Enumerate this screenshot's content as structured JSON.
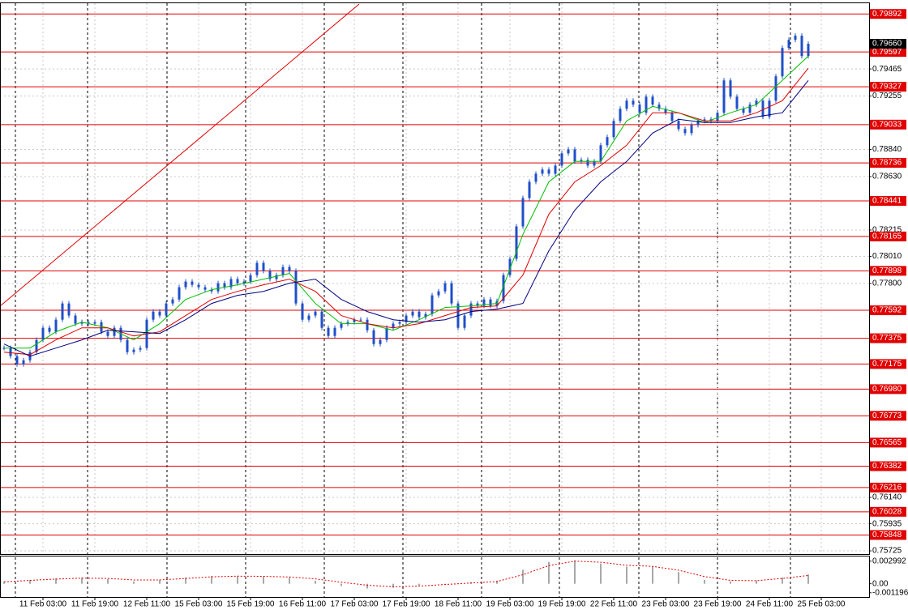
{
  "chart_data": {
    "type": "candlestick",
    "candle_color": "#1f4fc8",
    "closes": [
      0.77299,
      0.77236,
      0.77173,
      0.77204,
      0.77267,
      0.77362,
      0.77456,
      0.77425,
      0.77519,
      0.77645,
      0.77551,
      0.77488,
      0.775,
      0.77488,
      0.775,
      0.77425,
      0.77393,
      0.77456,
      0.77362,
      0.77267,
      0.77286,
      0.77299,
      0.77519,
      0.77582,
      0.77551,
      0.77645,
      0.77676,
      0.77771,
      0.77815,
      0.7779,
      0.77771,
      0.77752,
      0.77739,
      0.77802,
      0.77771,
      0.77834,
      0.77802,
      0.77815,
      0.77865,
      0.7796,
      0.77897,
      0.77834,
      0.77865,
      0.77928,
      0.77897,
      0.77645,
      0.77519,
      0.77551,
      0.77582,
      0.77456,
      0.77393,
      0.77456,
      0.77488,
      0.775,
      0.77519,
      0.77519,
      0.77437,
      0.7733,
      0.77362,
      0.77456,
      0.77488,
      0.775,
      0.77551,
      0.77582,
      0.77538,
      0.77563,
      0.77708,
      0.77739,
      0.77802,
      0.77645,
      0.77456,
      0.77551,
      0.77645,
      0.77626,
      0.77676,
      0.77626,
      0.77664,
      0.77865,
      0.77991,
      0.78243,
      0.78463,
      0.78589,
      0.78652,
      0.78684,
      0.78652,
      0.78715,
      0.7881,
      0.78841,
      0.78747,
      0.78759,
      0.78715,
      0.78747,
      0.78873,
      0.78936,
      0.79062,
      0.79156,
      0.79219,
      0.79188,
      0.79125,
      0.7925,
      0.79188,
      0.79156,
      0.79125,
      0.79062,
      0.78999,
      0.78967,
      0.7903,
      0.79062,
      0.79074,
      0.79062,
      0.79125,
      0.79376,
      0.7925,
      0.79156,
      0.79125,
      0.79188,
      0.79219,
      0.79093,
      0.79219,
      0.79408,
      0.79628,
      0.79691,
      0.79723,
      0.79565,
      0.7966
    ],
    "ma_x": [
      0,
      4,
      8,
      12,
      16,
      20,
      24,
      28,
      32,
      36,
      40,
      44,
      48,
      52,
      56,
      60,
      64,
      68,
      72,
      76,
      80,
      84,
      88,
      92,
      96,
      100,
      104,
      108,
      112,
      116,
      120,
      124
    ],
    "series": [
      {
        "color": "#00c000",
        "values": [
          0.77299,
          0.77299,
          0.77425,
          0.775,
          0.77456,
          0.77362,
          0.77488,
          0.77676,
          0.77752,
          0.7779,
          0.77834,
          0.77878,
          0.77645,
          0.77488,
          0.77488,
          0.77437,
          0.77519,
          0.77614,
          0.77626,
          0.77645,
          0.7818,
          0.78589,
          0.78747,
          0.78747,
          0.79062,
          0.79175,
          0.79125,
          0.79049,
          0.79125,
          0.79188,
          0.79376,
          0.79565
        ]
      },
      {
        "color": "#e00000",
        "values": [
          0.77267,
          0.77248,
          0.77362,
          0.77456,
          0.77456,
          0.77393,
          0.77425,
          0.77551,
          0.77676,
          0.77739,
          0.7779,
          0.77834,
          0.77739,
          0.77551,
          0.77488,
          0.77456,
          0.77488,
          0.77551,
          0.77614,
          0.77626,
          0.77865,
          0.78338,
          0.78589,
          0.78715,
          0.78873,
          0.79125,
          0.79125,
          0.79062,
          0.79062,
          0.79125,
          0.79219,
          0.79471
        ]
      },
      {
        "color": "#000080",
        "values": [
          0.7733,
          0.77236,
          0.77299,
          0.77362,
          0.77437,
          0.77425,
          0.77412,
          0.77519,
          0.77645,
          0.77708,
          0.77739,
          0.77802,
          0.77834,
          0.77676,
          0.77582,
          0.77519,
          0.775,
          0.77519,
          0.77582,
          0.77601,
          0.77645,
          0.78054,
          0.78369,
          0.78589,
          0.78747,
          0.78967,
          0.79074,
          0.79049,
          0.79049,
          0.79093,
          0.79125,
          0.79376
        ]
      }
    ],
    "level_color": "#e00000",
    "levels": [
      0.79892,
      0.79597,
      0.79327,
      0.79033,
      0.78736,
      0.78441,
      0.78165,
      0.77898,
      0.77592,
      0.77375,
      0.77175,
      {
        "value": 0.7698,
        "label": "0.76980"
      },
      0.76773,
      0.76565,
      0.76382,
      0.76216,
      0.76028,
      0.75848
    ],
    "current_price": {
      "value": 0.7966,
      "label": "0.79660"
    },
    "ylim": [
      0.757,
      0.79975
    ],
    "yticks": [
      0.79465,
      0.79255,
      {
        "value": 0.7884,
        "label": "0.78840"
      },
      {
        "value": 0.7863,
        "label": "0.78630"
      },
      0.78215,
      {
        "value": 0.7801,
        "label": "0.78010"
      },
      {
        "value": 0.778,
        "label": "0.77800"
      },
      {
        "value": 0.7614,
        "label": "0.76140"
      },
      0.75935,
      0.75725
    ],
    "xlim": [
      -0.625,
      133.375
    ],
    "xticks": [
      {
        "value": 6,
        "label": "11 Feb 03:00"
      },
      {
        "value": 14,
        "label": "11 Feb 19:00"
      },
      {
        "value": 22,
        "label": "12 Feb 11:00"
      },
      {
        "value": 30,
        "label": "15 Feb 03:00"
      },
      {
        "value": 38,
        "label": "15 Feb 19:00"
      },
      {
        "value": 46,
        "label": "16 Feb 11:00"
      },
      {
        "value": 54,
        "label": "17 Feb 03:00"
      },
      {
        "value": 62,
        "label": "17 Feb 19:00"
      },
      {
        "value": 70,
        "label": "18 Feb 11:00"
      },
      {
        "value": 78,
        "label": "19 Feb 03:00"
      },
      {
        "value": 86,
        "label": "19 Feb 19:00"
      },
      {
        "value": 94,
        "label": "22 Feb 11:00"
      },
      {
        "value": 102,
        "label": "23 Feb 03:00"
      },
      {
        "value": 110,
        "label": "23 Feb 19:00"
      },
      {
        "value": 118,
        "label": "24 Feb 11:00"
      },
      {
        "value": 126,
        "label": "25 Feb 03:00"
      }
    ],
    "grid": true,
    "indicator": {
      "type": "histogram",
      "color": "#a8a8a8",
      "signal_color": "#e00000",
      "values": [
        0.00031,
        0.00052,
        0.00072,
        0.00083,
        0.00062,
        0.00031,
        0.00052,
        0.00083,
        0.00103,
        0.00103,
        0.00093,
        0.00083,
        0.00041,
        -0.00031,
        -0.00062,
        -0.00052,
        -0.00021,
        0,
        0.00021,
        0.00041,
        0.00186,
        0.00289,
        0.0031,
        0.00268,
        0.00227,
        0.00227,
        0.00155,
        0.00052,
        0.00031,
        0.00041,
        0.00083,
        0.00124
      ],
      "signal": [
        0.00025,
        0.00045,
        0.00062,
        0.00075,
        0.0007,
        0.0005,
        0.0005,
        0.0007,
        0.00092,
        0.001,
        0.00098,
        0.0009,
        0.00065,
        0.0002,
        -0.0002,
        -0.0004,
        -0.0003,
        -0.0001,
        0.0001,
        0.0003,
        0.0012,
        0.0024,
        0.003,
        0.00285,
        0.00245,
        0.0023,
        0.0018,
        0.00095,
        0.00045,
        0.0004,
        0.0007,
        0.0011
      ],
      "ylim": [
        -0.00175,
        0.00361
      ],
      "yticks": [
        0.002992,
        {
          "value": 0,
          "label": "0.00"
        },
        -0.001196
      ]
    }
  }
}
